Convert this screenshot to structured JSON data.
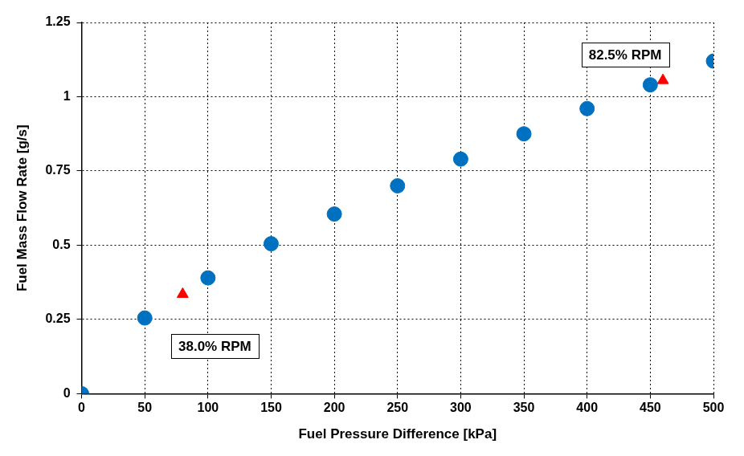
{
  "chart_data": {
    "type": "scatter",
    "x_label": "Fuel Pressure Difference [kPa]",
    "y_label": "Fuel Mass Flow Rate [g/s]",
    "series": [
      {
        "color": "#0070c0",
        "marker": "circle",
        "x": [
          0,
          50,
          100,
          150,
          200,
          250,
          300,
          350,
          400,
          450,
          500
        ],
        "values": [
          0,
          0.255,
          0.39,
          0.505,
          0.605,
          0.7,
          0.79,
          0.875,
          0.96,
          1.04,
          1.12
        ]
      },
      {
        "color": "#ff0000",
        "marker": "triangle",
        "x": [
          80,
          460
        ],
        "values": [
          0.335,
          1.055
        ]
      }
    ],
    "xlim": [
      0,
      500
    ],
    "xticks": [
      0,
      50,
      100,
      150,
      200,
      250,
      300,
      350,
      400,
      450,
      500
    ],
    "ylim": [
      0,
      1.25
    ],
    "yticks": [
      0,
      0.25,
      0.5,
      0.75,
      1,
      1.25
    ],
    "grid": true,
    "annotations": [
      {
        "text": "38.0% RPM",
        "x": 80,
        "y": 0.335
      },
      {
        "text": "82.5% RPM",
        "x": 460,
        "y": 1.055
      }
    ]
  }
}
